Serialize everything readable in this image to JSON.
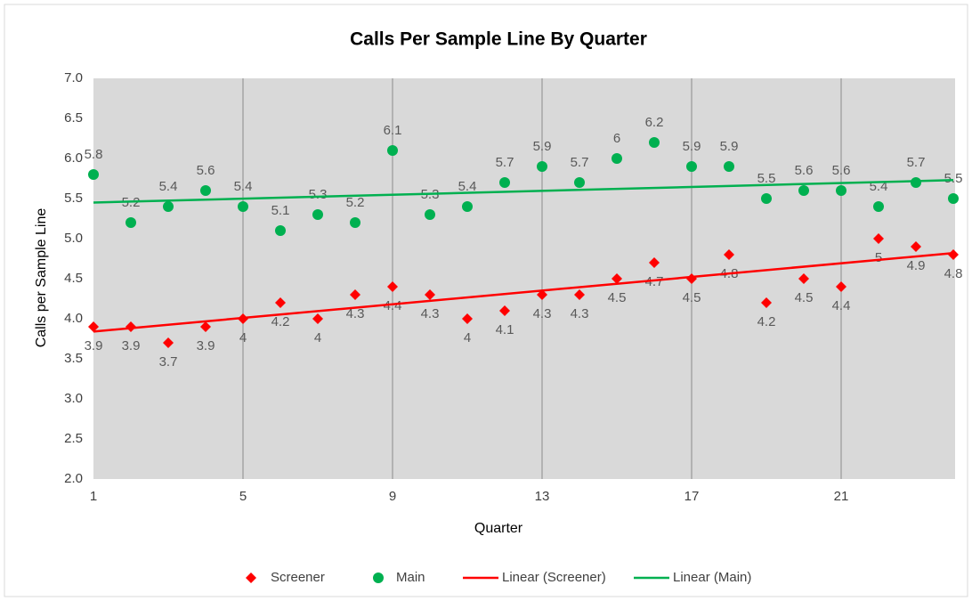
{
  "chart_data": {
    "type": "scatter",
    "title": "Calls Per Sample Line By Quarter",
    "x_label": "Quarter",
    "y_label": "Calls per Sample Line",
    "x": [
      1,
      2,
      3,
      4,
      5,
      6,
      7,
      8,
      9,
      10,
      11,
      12,
      13,
      14,
      15,
      16,
      17,
      18,
      19,
      20,
      21,
      22,
      23,
      24
    ],
    "series": [
      {
        "name": "Screener",
        "color": "#ff0000",
        "marker": "diamond",
        "values": [
          3.9,
          3.9,
          3.7,
          3.9,
          4.0,
          4.2,
          4.0,
          4.3,
          4.4,
          4.3,
          4.0,
          4.1,
          4.3,
          4.3,
          4.5,
          4.7,
          4.5,
          4.8,
          4.2,
          4.5,
          4.4,
          5.0,
          4.9,
          4.8
        ]
      },
      {
        "name": "Main",
        "color": "#00b050",
        "marker": "circle",
        "values": [
          5.8,
          5.2,
          5.4,
          5.6,
          5.4,
          5.1,
          5.3,
          5.2,
          6.1,
          5.3,
          5.4,
          5.7,
          5.9,
          5.7,
          6.0,
          6.2,
          5.9,
          5.9,
          5.5,
          5.6,
          5.6,
          5.4,
          5.7,
          5.5
        ]
      },
      {
        "name": "Linear (Screener)",
        "color": "#ff0000",
        "marker": "line",
        "x": [
          1,
          24
        ],
        "values": [
          3.84,
          4.82
        ]
      },
      {
        "name": "Linear (Main)",
        "color": "#00b050",
        "marker": "line",
        "x": [
          1,
          24
        ],
        "values": [
          5.45,
          5.73
        ]
      }
    ],
    "xlim": [
      1,
      24
    ],
    "xticks": [
      1,
      5,
      9,
      13,
      17,
      21
    ],
    "ylim": [
      2,
      7
    ],
    "yticks": [
      {
        "value": 2,
        "label": "2.0"
      },
      {
        "value": 2.5,
        "label": "2.5"
      },
      {
        "value": 3,
        "label": "3.0"
      },
      {
        "value": 3.5,
        "label": "3.5"
      },
      {
        "value": 4,
        "label": "4.0"
      },
      {
        "value": 4.5,
        "label": "4.5"
      },
      {
        "value": 5,
        "label": "5.0"
      },
      {
        "value": 5.5,
        "label": "5.5"
      },
      {
        "value": 6,
        "label": "6.0"
      },
      {
        "value": 6.5,
        "label": "6.5"
      },
      {
        "value": 7,
        "label": "7.0"
      }
    ],
    "grid": "x",
    "legend": "bottom",
    "plot_background": "#d9d9d9"
  }
}
